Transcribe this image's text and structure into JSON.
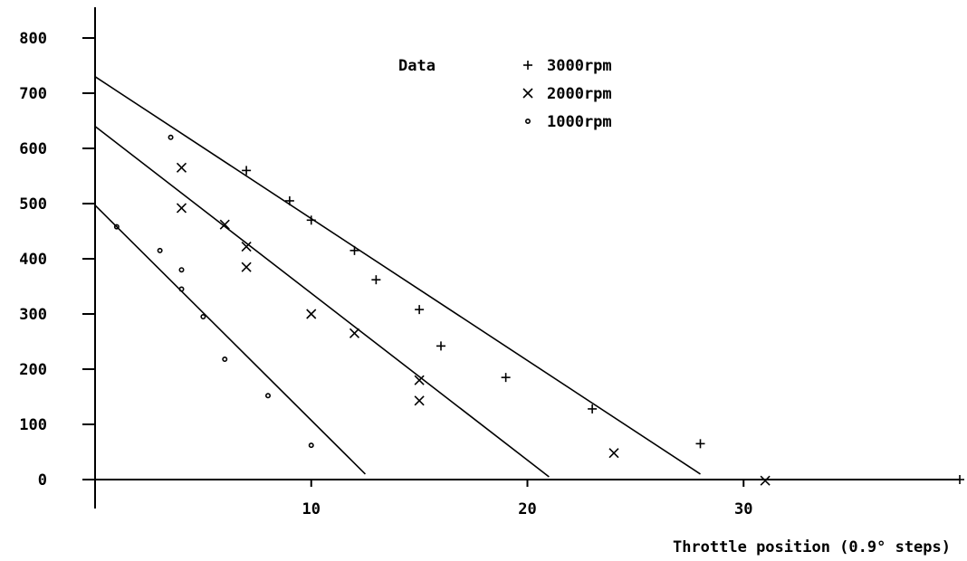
{
  "chart_data": {
    "type": "scatter",
    "xlabel": "Throttle position (0.9° steps)",
    "ylabel": "",
    "xlim": [
      0,
      40
    ],
    "ylim": [
      0,
      800
    ],
    "x_ticks": [
      10,
      20,
      30
    ],
    "x_tick_labels": [
      "10",
      "20",
      "30"
    ],
    "y_ticks": [
      0,
      100,
      200,
      300,
      400,
      500,
      600,
      700,
      800
    ],
    "y_tick_labels": [
      "0",
      "100",
      "200",
      "300",
      "400",
      "500",
      "600",
      "700",
      "800"
    ],
    "grid": false,
    "legend": {
      "title": "Data",
      "placement": "top-center",
      "entries": [
        {
          "symbol": "+",
          "label": "3000rpm"
        },
        {
          "symbol": "x",
          "label": "2000rpm"
        },
        {
          "symbol": "o",
          "label": "1000rpm"
        }
      ]
    },
    "series": [
      {
        "marker": "plus",
        "points": [
          [
            7,
            560
          ],
          [
            9,
            505
          ],
          [
            10,
            470
          ],
          [
            12,
            415
          ],
          [
            13,
            362
          ],
          [
            15,
            308
          ],
          [
            16,
            242
          ],
          [
            19,
            185
          ],
          [
            23,
            128
          ],
          [
            28,
            65
          ],
          [
            40,
            0
          ]
        ],
        "fit_line": [
          [
            0,
            730
          ],
          [
            28,
            10
          ]
        ]
      },
      {
        "marker": "x",
        "points": [
          [
            4,
            565
          ],
          [
            4,
            492
          ],
          [
            6,
            462
          ],
          [
            7,
            422
          ],
          [
            7,
            385
          ],
          [
            10,
            300
          ],
          [
            12,
            265
          ],
          [
            15,
            180
          ],
          [
            15,
            143
          ],
          [
            24,
            48
          ],
          [
            31,
            -2
          ]
        ],
        "fit_line": [
          [
            0,
            640
          ],
          [
            21,
            5
          ]
        ]
      },
      {
        "marker": "circle",
        "points": [
          [
            1,
            458
          ],
          [
            3,
            415
          ],
          [
            3.5,
            620
          ],
          [
            4,
            380
          ],
          [
            4,
            345
          ],
          [
            5,
            295
          ],
          [
            6,
            218
          ],
          [
            8,
            152
          ],
          [
            10,
            62
          ]
        ],
        "fit_line": [
          [
            0,
            497
          ],
          [
            12.5,
            10
          ]
        ]
      }
    ]
  }
}
